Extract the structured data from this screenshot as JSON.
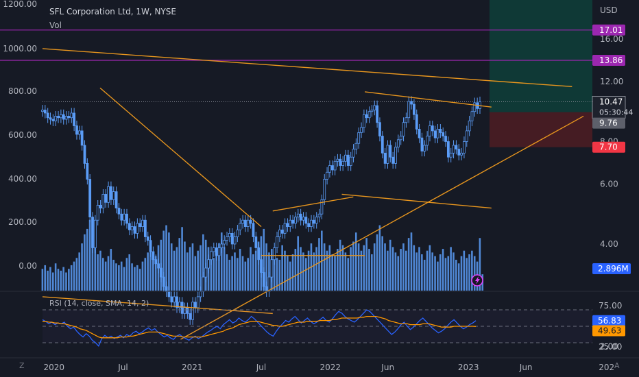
{
  "header": {
    "title": "SFL Corporation Ltd, 1W, NYSE",
    "volume_label": "Vol",
    "rsi_label": "RSI (14, close, SMA, 14, 2)",
    "corner_left": "Z",
    "corner_right": "A"
  },
  "colors": {
    "background": "#161a25",
    "candle": "#5b9cf6",
    "trendline": "#e8961e",
    "level_line": "#9c27b0",
    "rsi_line": "#2962ff",
    "rsi_ma": "#ff9800",
    "target_zone": "#0e3f3a",
    "stop_zone": "#4a1d24",
    "text": "#d1d4dc"
  },
  "chart_data": [
    {
      "type": "candlestick",
      "title": "SFL Corporation Ltd, 1W, NYSE",
      "currency": "USD",
      "x_ticks": [
        "2020",
        "Jul",
        "2021",
        "Jul",
        "2022",
        "Jun",
        "2023",
        "Jun",
        "202"
      ],
      "right_axis_ticks": [
        "16.00",
        "12.00",
        "8.00",
        "6.00",
        "4.00",
        "2.00"
      ],
      "left_axis_ticks": [
        "1200.00",
        "1000.00",
        "800.00",
        "600.00",
        "400.00",
        "200.00",
        "0.00"
      ],
      "weekly_close": [
        9.9,
        9.7,
        9.4,
        9.3,
        9.2,
        9.5,
        9.4,
        9.6,
        9.3,
        9.5,
        9.4,
        9.7,
        8.9,
        8.4,
        8.6,
        7.8,
        6.9,
        6.2,
        4.8,
        3.9,
        4.7,
        5.2,
        5.1,
        5.6,
        5.3,
        5.9,
        5.4,
        5.7,
        5.1,
        4.9,
        4.7,
        4.9,
        4.6,
        4.4,
        4.5,
        4.3,
        4.6,
        4.5,
        4.7,
        4.2,
        4.1,
        3.8,
        3.6,
        3.5,
        3.4,
        3.2,
        3.0,
        2.9,
        2.8,
        2.7,
        2.8,
        2.6,
        2.7,
        2.5,
        2.6,
        2.5,
        2.4,
        2.7,
        2.6,
        2.8,
        2.9,
        3.2,
        3.4,
        3.6,
        3.8,
        3.9,
        3.7,
        3.9,
        4.0,
        4.1,
        4.2,
        4.3,
        4.0,
        4.2,
        4.4,
        4.6,
        4.7,
        4.5,
        4.7,
        4.6,
        4.2,
        3.9,
        3.6,
        3.3,
        3.0,
        2.9,
        3.2,
        3.6,
        3.9,
        4.2,
        4.4,
        4.3,
        4.6,
        4.5,
        4.7,
        4.6,
        4.8,
        4.9,
        4.7,
        4.8,
        4.6,
        4.5,
        4.7,
        4.6,
        4.8,
        4.9,
        5.4,
        6.2,
        6.5,
        6.8,
        6.6,
        7.0,
        7.1,
        6.8,
        7.0,
        7.3,
        6.8,
        7.2,
        7.6,
        7.9,
        8.5,
        8.8,
        9.6,
        9.4,
        9.8,
        9.9,
        10.2,
        9.1,
        8.3,
        7.4,
        6.9,
        7.8,
        7.2,
        6.9,
        7.7,
        8.1,
        8.3,
        9.1,
        9.4,
        10.5,
        10.3,
        9.6,
        8.7,
        8.2,
        7.5,
        7.8,
        8.3,
        8.9,
        8.6,
        8.2,
        8.7,
        8.5,
        8.3,
        8.0,
        7.2,
        7.4,
        7.8,
        7.6,
        7.3,
        7.4,
        8.0,
        8.6,
        9.2,
        9.8,
        10.4,
        10.0,
        10.47
      ],
      "price_labels": [
        {
          "text": "17.01",
          "role": "target level"
        },
        {
          "text": "13.86",
          "role": "resistance level"
        },
        {
          "text": "10.47",
          "role": "last price"
        },
        {
          "text": "05:30:44",
          "role": "bar close countdown"
        },
        {
          "text": "9.76",
          "role": "entry"
        },
        {
          "text": "7.70",
          "role": "stop"
        }
      ],
      "horizontal_levels": [
        17.01,
        13.86
      ],
      "position": {
        "entry": 9.76,
        "target": 17.01,
        "stop": 7.7
      },
      "trendlines": [
        {
          "from": [
            "2019-12",
            15.0
          ],
          "to": [
            "2023-10",
            11.6
          ]
        },
        {
          "from": [
            "2020-05",
            11.5
          ],
          "to": [
            "2021-07",
            4.5
          ]
        },
        {
          "from": [
            "2019-12",
            2.8
          ],
          "to": [
            "2021-08",
            2.5
          ]
        },
        {
          "from": [
            "2020-12",
            2.1
          ],
          "to": [
            "2023-11",
            9.5
          ]
        },
        {
          "from": [
            "2021-07",
            3.7
          ],
          "to": [
            "2022-04",
            3.7
          ]
        },
        {
          "from": [
            "2021-08",
            5.0
          ],
          "to": [
            "2022-03",
            5.5
          ]
        },
        {
          "from": [
            "2022-02",
            5.6
          ],
          "to": [
            "2023-03",
            5.1
          ]
        },
        {
          "from": [
            "2022-04",
            11.2
          ],
          "to": [
            "2023-03",
            10.1
          ]
        }
      ]
    },
    {
      "type": "bar",
      "name": "Vol",
      "last_value_label": "2.896M",
      "weekly_volume_million": [
        1.2,
        1.4,
        1.1,
        1.3,
        1.0,
        1.5,
        1.2,
        1.1,
        1.3,
        1.0,
        1.2,
        1.4,
        1.6,
        1.8,
        2.1,
        2.6,
        3.1,
        3.4,
        3.9,
        3.0,
        2.5,
        2.0,
        2.2,
        1.8,
        1.6,
        1.9,
        2.3,
        1.7,
        1.5,
        1.4,
        1.6,
        1.3,
        1.8,
        2.0,
        1.5,
        1.3,
        1.4,
        1.2,
        1.6,
        1.8,
        2.1,
        2.4,
        2.0,
        1.9,
        2.5,
        2.8,
        3.3,
        3.6,
        3.2,
        2.6,
        2.2,
        2.4,
        2.9,
        3.5,
        2.7,
        2.1,
        2.4,
        2.6,
        1.9,
        2.2,
        2.5,
        3.1,
        2.8,
        2.4,
        2.0,
        1.8,
        2.2,
        2.6,
        3.2,
        2.4,
        2.0,
        1.7,
        1.9,
        2.1,
        1.8,
        2.3,
        1.9,
        1.6,
        1.8,
        2.4,
        2.0,
        2.2,
        2.7,
        3.0,
        3.4,
        2.6,
        2.1,
        2.3,
        2.0,
        1.8,
        1.7,
        2.5,
        2.2,
        1.9,
        1.6,
        2.0,
        2.3,
        3.0,
        2.4,
        2.1,
        1.8,
        2.2,
        2.6,
        2.1,
        2.4,
        2.9,
        3.3,
        2.6,
        2.2,
        2.5,
        2.0,
        1.9,
        2.3,
        2.8,
        2.5,
        2.1,
        1.8,
        2.4,
        2.7,
        3.2,
        2.6,
        2.2,
        2.5,
        2.9,
        2.3,
        2.0,
        2.6,
        3.1,
        3.6,
        3.0,
        2.6,
        2.2,
        2.8,
        2.4,
        2.1,
        1.9,
        2.3,
        2.6,
        2.2,
        2.9,
        3.2,
        2.5,
        2.1,
        2.4,
        2.0,
        1.7,
        2.2,
        2.5,
        2.1,
        1.9,
        1.6,
        2.0,
        2.3,
        1.8,
        1.9,
        2.4,
        2.1,
        1.7,
        1.5,
        1.9,
        2.2,
        1.8,
        2.0,
        2.2,
        1.9,
        1.6,
        2.896,
        0.9
      ]
    },
    {
      "type": "line",
      "name": "RSI (14, close, SMA, 14, 2)",
      "axis_ticks": [
        "75.00",
        "25.00"
      ],
      "bands": [
        70,
        50,
        30
      ],
      "ylim": [
        20,
        80
      ],
      "series": [
        {
          "name": "RSI",
          "last_label": "56.83",
          "values": [
            58,
            56,
            53,
            55,
            52,
            54,
            53,
            55,
            50,
            47,
            49,
            44,
            40,
            37,
            41,
            38,
            33,
            30,
            26,
            35,
            39,
            36,
            38,
            35,
            37,
            39,
            36,
            40,
            38,
            42,
            44,
            41,
            43,
            46,
            48,
            45,
            47,
            43,
            40,
            37,
            39,
            36,
            34,
            38,
            40,
            37,
            35,
            33,
            36,
            38,
            35,
            37,
            40,
            43,
            45,
            48,
            50,
            47,
            52,
            55,
            58,
            54,
            56,
            60,
            57,
            55,
            58,
            62,
            59,
            55,
            51,
            47,
            43,
            40,
            38,
            44,
            49,
            53,
            57,
            55,
            59,
            62,
            58,
            54,
            57,
            60,
            56,
            53,
            55,
            58,
            61,
            57,
            55,
            59,
            64,
            68,
            66,
            62,
            59,
            57,
            55,
            58,
            62,
            66,
            70,
            68,
            64,
            60,
            56,
            52,
            48,
            44,
            40,
            43,
            47,
            52,
            55,
            50,
            46,
            49,
            53,
            57,
            60,
            56,
            52,
            48,
            45,
            42,
            44,
            47,
            51,
            55,
            58,
            54,
            50,
            47,
            49,
            52,
            54,
            56.83
          ]
        },
        {
          "name": "SMA",
          "last_label": "49.63",
          "values": [
            56,
            56,
            55,
            55,
            54,
            54,
            53,
            53,
            52,
            51,
            50,
            49,
            47,
            46,
            45,
            43,
            41,
            39,
            37,
            36,
            36,
            36,
            36,
            36,
            36,
            37,
            37,
            37,
            38,
            38,
            39,
            40,
            41,
            42,
            43,
            43,
            43,
            43,
            42,
            41,
            40,
            39,
            38,
            38,
            38,
            37,
            37,
            37,
            37,
            37,
            37,
            37,
            38,
            39,
            40,
            41,
            42,
            43,
            44,
            46,
            47,
            48,
            50,
            52,
            53,
            54,
            55,
            56,
            56,
            56,
            55,
            54,
            53,
            52,
            51,
            51,
            50,
            50,
            51,
            52,
            53,
            54,
            55,
            55,
            55,
            56,
            56,
            56,
            56,
            57,
            57,
            57,
            57,
            58,
            58,
            59,
            60,
            60,
            60,
            60,
            60,
            60,
            61,
            61,
            62,
            62,
            62,
            62,
            61,
            60,
            59,
            57,
            56,
            55,
            54,
            53,
            53,
            53,
            52,
            52,
            52,
            52,
            53,
            53,
            53,
            52,
            51,
            50,
            49,
            49,
            49,
            49,
            50,
            50,
            50,
            50,
            50,
            50,
            50,
            49.63
          ]
        }
      ]
    }
  ]
}
